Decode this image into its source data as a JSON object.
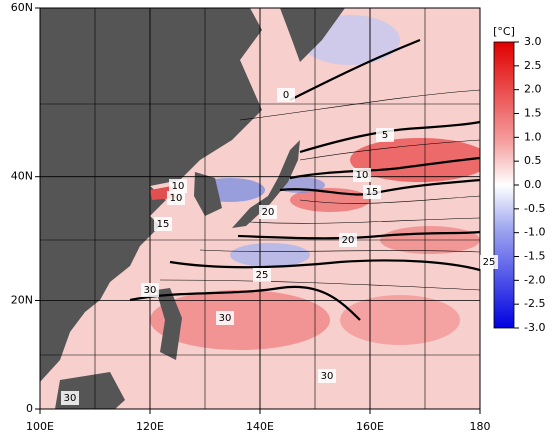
{
  "map": {
    "lat_range": [
      0,
      60
    ],
    "lon_range": [
      100,
      180
    ],
    "lat_ticks": [
      0,
      {
        "value": 20,
        "label": "20N"
      },
      {
        "value": 40,
        "label": "40N"
      },
      {
        "value": 60,
        "label": "60N"
      }
    ],
    "lon_ticks": [
      {
        "value": 100,
        "label": "100E"
      },
      {
        "value": 120,
        "label": "120E"
      },
      {
        "value": 140,
        "label": "140E"
      },
      {
        "value": 160,
        "label": "160E"
      },
      180
    ],
    "colorbar": {
      "unit": "[°C]",
      "range": [
        -3,
        3
      ],
      "ticks": [
        {
          "value": 3,
          "label": "3.0"
        },
        2.5,
        {
          "value": 2,
          "label": "2.0"
        },
        1.5,
        {
          "value": 1,
          "label": "1.0"
        },
        0.5,
        {
          "value": 0,
          "label": "0.0"
        },
        -0.5,
        {
          "value": -1,
          "label": "-1.0"
        },
        -1.5,
        {
          "value": -2,
          "label": "-2.0"
        },
        -2.5,
        {
          "value": -3,
          "label": "-3.0"
        }
      ]
    },
    "contour_labels": [
      0,
      5,
      10,
      15,
      20,
      25,
      25,
      20,
      10,
      10,
      15,
      30,
      30,
      30,
      30
    ]
  }
}
